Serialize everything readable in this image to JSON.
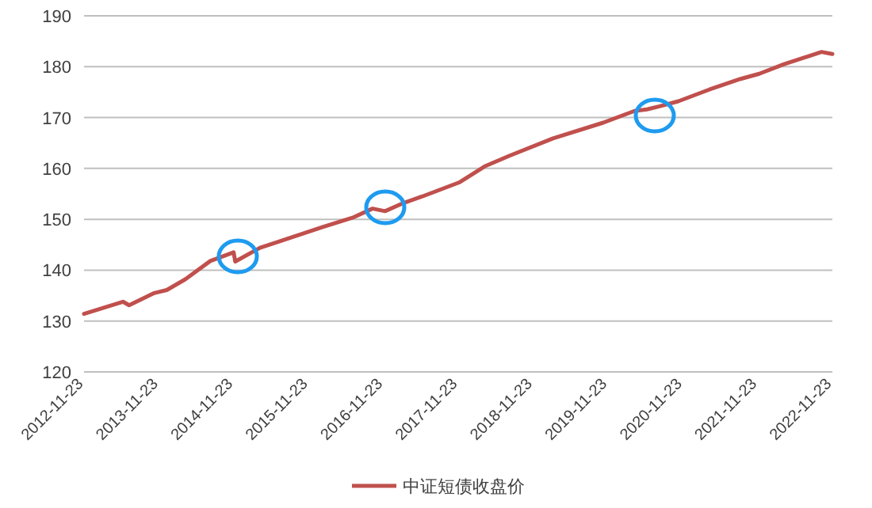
{
  "chart_data": {
    "type": "line",
    "x": [
      "2012-11-23",
      "2013-06",
      "2013-07",
      "2013-11",
      "2014-01",
      "2014-04",
      "2014-08",
      "2014-11-23",
      "2014-12",
      "2015-04",
      "2015-07",
      "2016-02",
      "2016-07",
      "2016-10",
      "2016-12",
      "2017-03",
      "2017-06",
      "2017-12",
      "2018-04",
      "2018-08",
      "2019-03",
      "2019-11",
      "2020-04",
      "2020-06",
      "2020-08",
      "2020-11",
      "2021-04",
      "2021-09",
      "2021-12",
      "2022-04",
      "2022-10",
      "2022-11-23"
    ],
    "series": [
      {
        "name": "中证短债收盘价",
        "color": "#c0504d",
        "values": [
          131.4,
          133.8,
          133.1,
          135.5,
          136.1,
          138.2,
          141.8,
          143.5,
          141.7,
          144.4,
          145.6,
          148.5,
          150.4,
          152.1,
          151.6,
          153.2,
          154.5,
          157.3,
          160.4,
          162.5,
          165.9,
          169.0,
          171.3,
          171.6,
          172.2,
          173.2,
          175.5,
          177.6,
          178.6,
          180.5,
          182.9,
          182.5
        ]
      }
    ],
    "xlim": [
      "2012-11-23",
      "2022-11-23"
    ],
    "xticks": [
      "2012-11-23",
      "2013-11-23",
      "2014-11-23",
      "2015-11-23",
      "2016-11-23",
      "2017-11-23",
      "2018-11-23",
      "2019-11-23",
      "2020-11-23",
      "2021-11-23",
      "2022-11-23"
    ],
    "ylim": [
      120,
      190
    ],
    "yticks": [
      120,
      130,
      140,
      150,
      160,
      170,
      180,
      190
    ],
    "grid": "y",
    "legend": "bottom",
    "marker": "none",
    "line_style": "solid"
  }
}
